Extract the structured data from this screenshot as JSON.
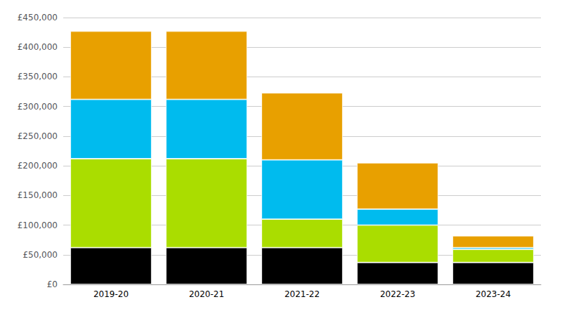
{
  "chart_data": {
    "type": "bar",
    "stacked": true,
    "grid": true,
    "categories": [
      "2019-20",
      "2020-21",
      "2021-22",
      "2022-23",
      "2023-24"
    ],
    "series": [
      {
        "color": "#000000",
        "values": [
          62000,
          62000,
          62000,
          37000,
          37000
        ]
      },
      {
        "color": "#AADD00",
        "values": [
          150000,
          150000,
          48000,
          63000,
          22000
        ]
      },
      {
        "color": "#00BBEE",
        "values": [
          100000,
          100000,
          100000,
          27000,
          3000
        ]
      },
      {
        "color": "#E8A000",
        "values": [
          115000,
          115000,
          113000,
          78000,
          20000
        ]
      }
    ],
    "ylim": [
      0,
      450000
    ],
    "yticks": [
      {
        "value": 0,
        "label": "£0"
      },
      {
        "value": 50000,
        "label": "£50,000"
      },
      {
        "value": 100000,
        "label": "£100,000"
      },
      {
        "value": 150000,
        "label": "£150,000"
      },
      {
        "value": 200000,
        "label": "£200,000"
      },
      {
        "value": 250000,
        "label": "£250,000"
      },
      {
        "value": 300000,
        "label": "£300,000"
      },
      {
        "value": 350000,
        "label": "£350,000"
      },
      {
        "value": 400000,
        "label": "£400,000"
      },
      {
        "value": 450000,
        "label": "£450,000"
      }
    ]
  }
}
